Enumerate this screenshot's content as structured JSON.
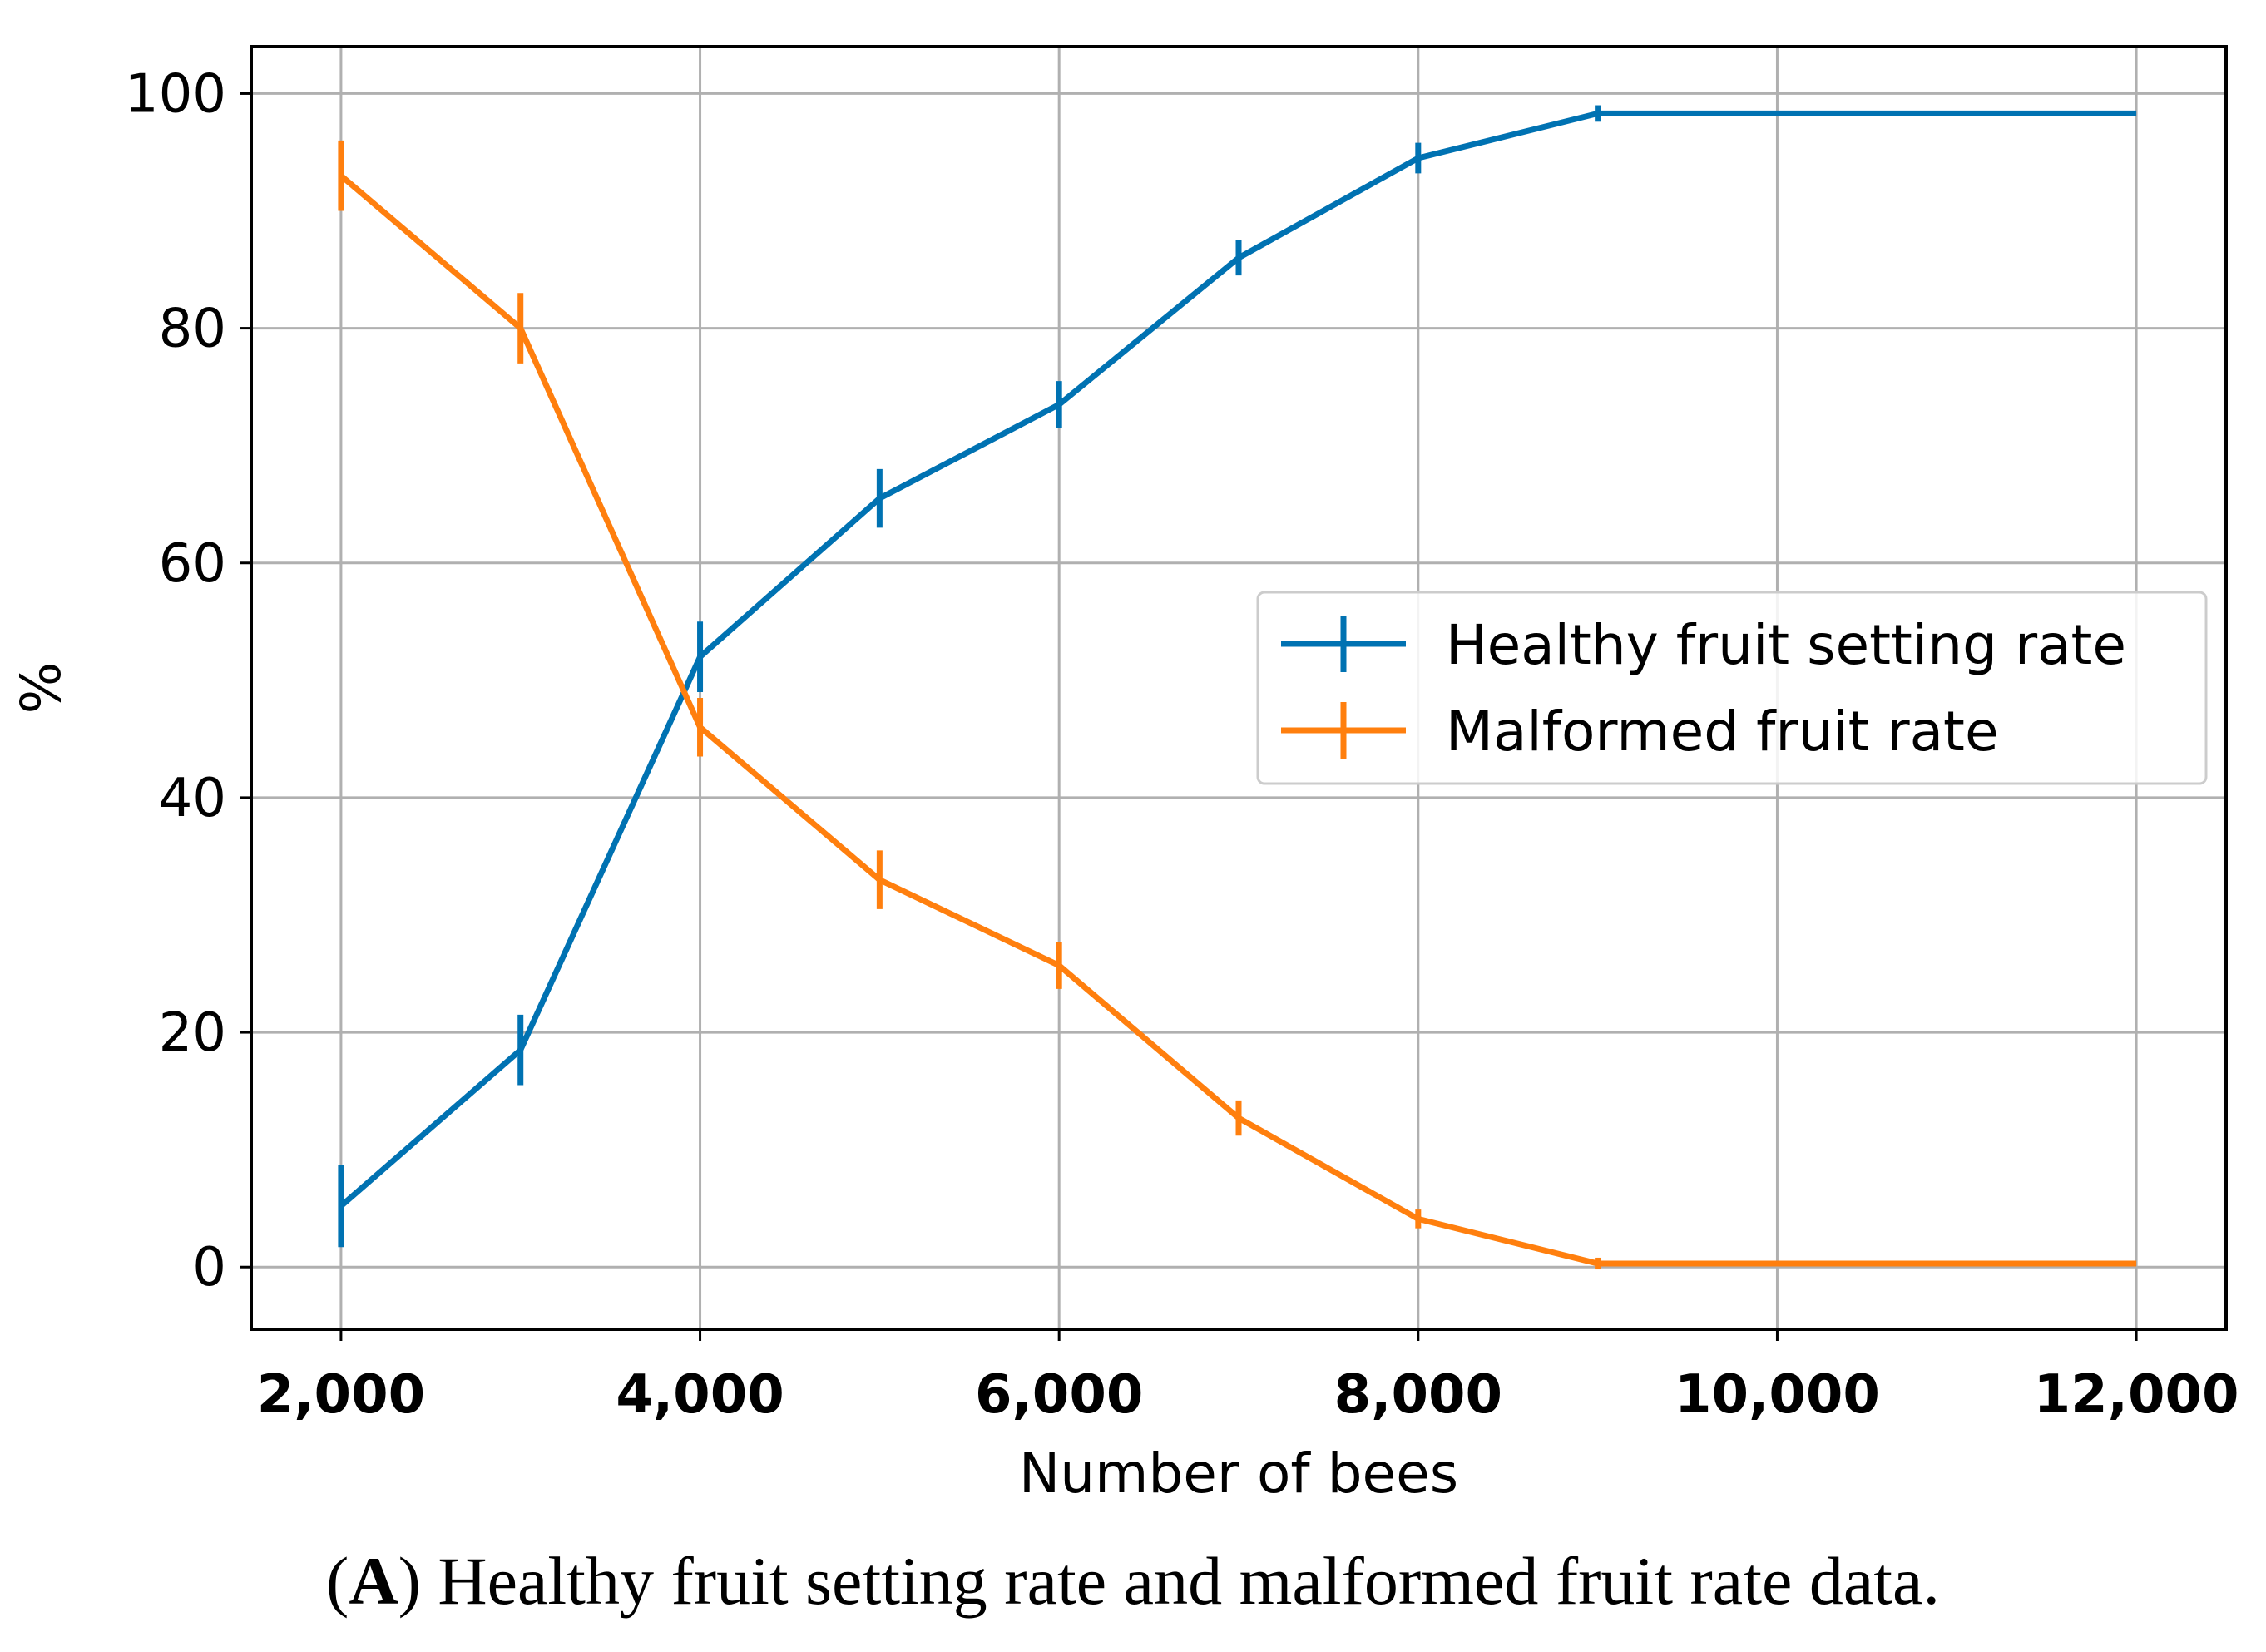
{
  "chart_data": {
    "type": "line",
    "x": [
      2000,
      3000,
      4000,
      5000,
      6000,
      7000,
      8000,
      9000,
      12000
    ],
    "x_tick_values": [
      2000,
      4000,
      6000,
      8000,
      10000,
      12000
    ],
    "x_tick_labels": [
      "2,000",
      "4,000",
      "6,000",
      "8,000",
      "10,000",
      "12,000"
    ],
    "y_tick_values": [
      0,
      20,
      40,
      60,
      80,
      100
    ],
    "y_tick_labels": [
      "0",
      "20",
      "40",
      "60",
      "80",
      "100"
    ],
    "xlim": [
      1500,
      12500
    ],
    "ylim": [
      -5.3,
      104
    ],
    "xlabel": "Number of bees",
    "ylabel": "%",
    "grid": true,
    "legend_position": "center-right",
    "series": [
      {
        "name": "Healthy fruit setting rate",
        "color": "#0072B2",
        "values": [
          5.2,
          18.5,
          52.0,
          65.5,
          73.5,
          86.0,
          94.5,
          98.3,
          98.3
        ],
        "errors": [
          3.5,
          3.0,
          3.0,
          2.5,
          2.0,
          1.5,
          1.3,
          0.7,
          0
        ]
      },
      {
        "name": "Malformed fruit rate",
        "color": "#FF7F0E",
        "values": [
          93.0,
          80.0,
          46.0,
          33.0,
          25.7,
          12.7,
          4.1,
          0.3,
          0.3
        ],
        "errors": [
          3.0,
          3.0,
          2.5,
          2.5,
          2.0,
          1.5,
          0.8,
          0.5,
          0
        ]
      }
    ]
  },
  "caption": {
    "panel_letter": "A",
    "text": "Healthy fruit setting rate and malformed fruit rate data."
  }
}
